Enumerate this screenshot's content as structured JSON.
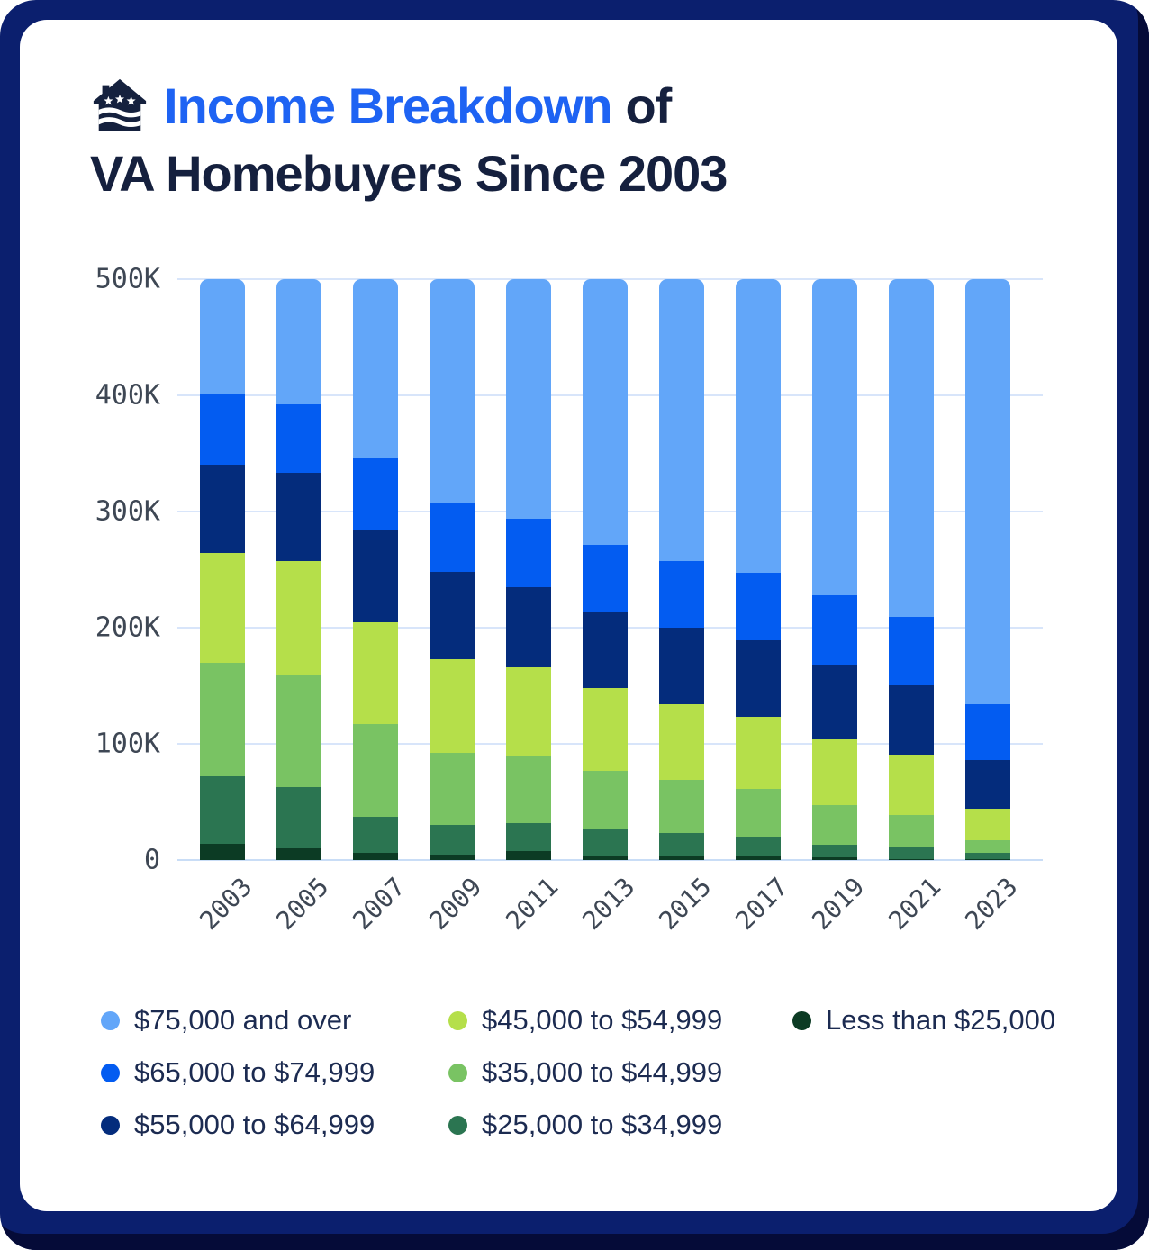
{
  "frame": {
    "outer_color": "#0b1f6e",
    "shadow_color": "#050b38",
    "card_color": "#ffffff"
  },
  "header": {
    "logo": "veterans-united-house-logo",
    "title_line1_highlight": "Income Breakdown",
    "title_line1_rest": "of",
    "title_line2": "VA Homebuyers Since 2003",
    "highlight_color": "#1e63f3",
    "text_color": "#15203e"
  },
  "chart_data": {
    "type": "bar",
    "stacked": true,
    "title": "Income Breakdown of VA Homebuyers Since 2003",
    "xlabel": "",
    "ylabel": "",
    "ylim": [
      0,
      500
    ],
    "y_ticks": [
      "500K",
      "400K",
      "300K",
      "200K",
      "100K",
      "0"
    ],
    "values_unit": "thousands",
    "grid": true,
    "legend_position": "bottom",
    "categories": [
      "2003",
      "2005",
      "2007",
      "2009",
      "2011",
      "2013",
      "2015",
      "2017",
      "2019",
      "2021",
      "2023"
    ],
    "series": [
      {
        "name": "$75,000 and over",
        "color": "#62a6f9",
        "values": [
          99,
          108,
          154,
          193,
          206,
          229,
          243,
          253,
          272,
          291,
          366
        ]
      },
      {
        "name": "$65,000 to $74,999",
        "color": "#035cf1",
        "values": [
          61,
          59,
          62,
          59,
          59,
          58,
          57,
          58,
          60,
          59,
          48
        ]
      },
      {
        "name": "$55,000 to $64,999",
        "color": "#042c7c",
        "values": [
          76,
          76,
          79,
          75,
          69,
          65,
          66,
          66,
          64,
          59,
          42
        ]
      },
      {
        "name": "$45,000 to $54,999",
        "color": "#b5df4a",
        "values": [
          94,
          98,
          88,
          81,
          76,
          71,
          65,
          62,
          57,
          52,
          27
        ]
      },
      {
        "name": "$35,000 to $44,999",
        "color": "#79c363",
        "values": [
          98,
          96,
          80,
          62,
          58,
          50,
          46,
          41,
          34,
          28,
          11
        ]
      },
      {
        "name": "$25,000 to $34,999",
        "color": "#2b7551",
        "values": [
          58,
          53,
          31,
          25,
          24,
          23,
          20,
          17,
          11,
          10,
          5
        ]
      },
      {
        "name": "Less than $25,000",
        "color": "#0c3b24",
        "values": [
          14,
          10,
          6,
          5,
          8,
          4,
          3,
          3,
          2,
          1,
          1
        ]
      }
    ]
  },
  "legend": {
    "columns": [
      [
        0,
        1,
        2
      ],
      [
        3,
        4,
        5
      ],
      [
        6
      ]
    ]
  },
  "layout_colors": {
    "gridline": "#d8e5fa",
    "axis_text": "#3e4754"
  }
}
